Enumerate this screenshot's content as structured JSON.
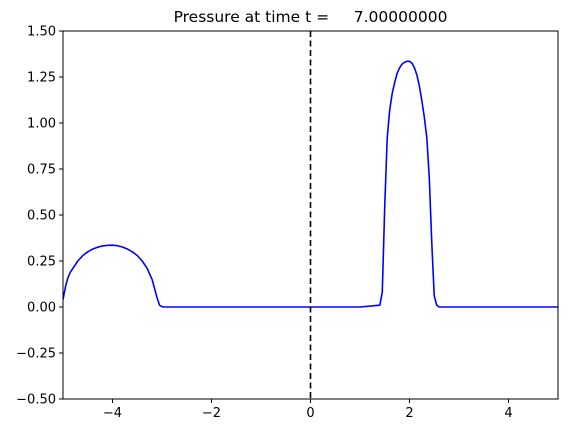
{
  "chart_data": {
    "type": "line",
    "title": "Pressure at time t =     7.00000000",
    "xlabel": "",
    "ylabel": "",
    "xlim": [
      -5,
      5
    ],
    "ylim": [
      -0.5,
      1.5
    ],
    "xticks": [
      -4,
      -2,
      0,
      2,
      4
    ],
    "xtick_labels": [
      "−4",
      "−2",
      "0",
      "2",
      "4"
    ],
    "yticks": [
      -0.5,
      -0.25,
      0.0,
      0.25,
      0.5,
      0.75,
      1.0,
      1.25,
      1.5
    ],
    "ytick_labels": [
      "−0.50",
      "−0.25",
      "0.00",
      "0.25",
      "0.50",
      "0.75",
      "1.00",
      "1.25",
      "1.50"
    ],
    "grid": false,
    "legend": "none",
    "series": [
      {
        "color": "#0000ff",
        "style": "solid",
        "x": [
          -5.0,
          -4.95,
          -4.9,
          -4.85,
          -4.8,
          -4.7,
          -4.6,
          -4.5,
          -4.4,
          -4.3,
          -4.2,
          -4.1,
          -4.0,
          -3.9,
          -3.8,
          -3.7,
          -3.6,
          -3.5,
          -3.4,
          -3.3,
          -3.2,
          -3.15,
          -3.1,
          -3.05,
          -3.0,
          -2.95,
          -2.0,
          -1.0,
          0.0,
          1.0,
          1.4,
          1.45,
          1.5,
          1.55,
          1.6,
          1.65,
          1.7,
          1.75,
          1.8,
          1.85,
          1.9,
          1.95,
          2.0,
          2.05,
          2.1,
          2.15,
          2.2,
          2.25,
          2.3,
          2.35,
          2.4,
          2.45,
          2.5,
          2.55,
          2.6,
          2.65,
          3.0,
          4.0,
          5.0
        ],
        "y": [
          0.04,
          0.11,
          0.16,
          0.19,
          0.21,
          0.25,
          0.28,
          0.3,
          0.315,
          0.325,
          0.332,
          0.335,
          0.336,
          0.333,
          0.326,
          0.315,
          0.3,
          0.28,
          0.25,
          0.21,
          0.15,
          0.1,
          0.05,
          0.01,
          0.002,
          0.0,
          0.0,
          0.0,
          0.0,
          0.0,
          0.01,
          0.08,
          0.55,
          0.92,
          1.07,
          1.16,
          1.22,
          1.27,
          1.3,
          1.32,
          1.33,
          1.335,
          1.335,
          1.325,
          1.3,
          1.26,
          1.2,
          1.12,
          1.03,
          0.92,
          0.7,
          0.35,
          0.06,
          0.01,
          0.0,
          0.0,
          0.0,
          0.0,
          0.0
        ]
      }
    ],
    "vlines": [
      {
        "x": 0,
        "color": "#000000",
        "style": "dashed"
      }
    ]
  }
}
